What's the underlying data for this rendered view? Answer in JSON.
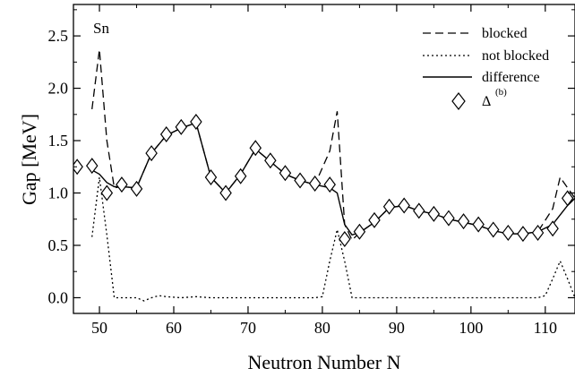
{
  "chart_data": {
    "type": "line",
    "xlabel": "Neutron Number N",
    "ylabel": "Gap [MeV]",
    "xlim": [
      46.5,
      114
    ],
    "ylim": [
      -0.15,
      2.8
    ],
    "x_ticks": [
      50,
      60,
      70,
      80,
      90,
      100,
      110
    ],
    "y_ticks": [
      0.0,
      0.5,
      1.0,
      1.5,
      2.0,
      2.5
    ],
    "x_tick_labels": [
      "50",
      "60",
      "70",
      "80",
      "90",
      "100",
      "110"
    ],
    "y_tick_labels": [
      "0.0",
      "0.5",
      "1.0",
      "1.5",
      "2.0",
      "2.5"
    ],
    "annotation": "Sn",
    "grid": false,
    "legend_position": "top-right",
    "series": [
      {
        "name": "blocked",
        "style": "dashed",
        "x": [
          49,
          50,
          51,
          52,
          53,
          55,
          57,
          59,
          61,
          63,
          65,
          67,
          69,
          71,
          73,
          75,
          77,
          79,
          81,
          82,
          83,
          84,
          85,
          87,
          89,
          91,
          93,
          95,
          97,
          99,
          101,
          103,
          105,
          107,
          109,
          111,
          112,
          113,
          114
        ],
        "y": [
          1.8,
          2.37,
          1.5,
          1.05,
          1.06,
          1.05,
          1.38,
          1.55,
          1.62,
          1.67,
          1.15,
          1.0,
          1.18,
          1.42,
          1.3,
          1.18,
          1.12,
          1.08,
          1.4,
          1.78,
          0.7,
          0.55,
          0.62,
          0.72,
          0.86,
          0.88,
          0.83,
          0.8,
          0.75,
          0.72,
          0.69,
          0.64,
          0.61,
          0.61,
          0.63,
          0.85,
          1.15,
          1.05,
          0.95
        ]
      },
      {
        "name": "not blocked",
        "style": "dotted",
        "x": [
          49,
          50,
          51,
          52,
          53,
          55,
          56,
          57,
          58,
          59,
          61,
          63,
          65,
          67,
          69,
          71,
          73,
          75,
          77,
          79,
          80,
          81,
          82,
          83,
          84,
          85,
          87,
          89,
          91,
          93,
          95,
          97,
          99,
          101,
          103,
          105,
          107,
          109,
          110,
          111,
          112,
          113,
          114
        ],
        "y": [
          0.58,
          1.15,
          0.6,
          0.0,
          0.0,
          0.0,
          -0.03,
          0.0,
          0.02,
          0.01,
          0.0,
          0.01,
          0.0,
          0.0,
          0.0,
          0.0,
          0.0,
          0.0,
          0.0,
          0.0,
          0.01,
          0.35,
          0.65,
          0.35,
          0.0,
          0.0,
          0.0,
          0.0,
          0.0,
          0.0,
          0.0,
          0.0,
          0.0,
          0.0,
          0.0,
          0.0,
          0.0,
          0.0,
          0.02,
          0.18,
          0.35,
          0.18,
          0.0
        ]
      },
      {
        "name": "difference",
        "style": "solid",
        "x": [
          49,
          50,
          51,
          52,
          53,
          55,
          57,
          59,
          61,
          63,
          65,
          67,
          69,
          71,
          73,
          75,
          77,
          79,
          81,
          82,
          83,
          84,
          85,
          87,
          89,
          91,
          93,
          95,
          97,
          99,
          101,
          103,
          105,
          107,
          109,
          111,
          113,
          114
        ],
        "y": [
          1.22,
          1.18,
          1.1,
          1.06,
          1.06,
          1.05,
          1.38,
          1.55,
          1.62,
          1.67,
          1.15,
          1.0,
          1.18,
          1.42,
          1.3,
          1.18,
          1.12,
          1.08,
          1.05,
          1.0,
          0.7,
          0.6,
          0.62,
          0.72,
          0.86,
          0.88,
          0.83,
          0.8,
          0.75,
          0.72,
          0.69,
          0.64,
          0.61,
          0.61,
          0.63,
          0.7,
          0.88,
          0.95
        ]
      },
      {
        "name": "Δ",
        "name_superscript": "(b)",
        "style": "diamond-markers",
        "x": [
          47,
          49,
          51,
          53,
          55,
          57,
          59,
          61,
          63,
          65,
          67,
          69,
          71,
          73,
          75,
          77,
          79,
          81,
          83,
          85,
          87,
          89,
          91,
          93,
          95,
          97,
          99,
          101,
          103,
          105,
          107,
          109,
          111,
          113
        ],
        "y": [
          1.25,
          1.26,
          1.0,
          1.08,
          1.04,
          1.38,
          1.56,
          1.63,
          1.68,
          1.15,
          1.0,
          1.16,
          1.43,
          1.31,
          1.19,
          1.12,
          1.09,
          1.08,
          0.56,
          0.63,
          0.74,
          0.87,
          0.88,
          0.83,
          0.8,
          0.76,
          0.73,
          0.7,
          0.65,
          0.62,
          0.61,
          0.62,
          0.66,
          0.95
        ]
      }
    ]
  }
}
